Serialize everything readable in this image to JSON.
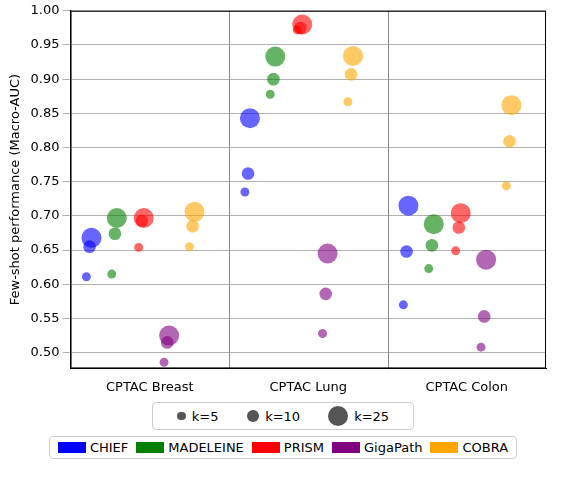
{
  "chart_data": {
    "type": "scatter",
    "y_label": "Few-shot performance (Macro-AUC)",
    "categories": [
      "CPTAC Breast",
      "CPTAC Lung",
      "CPTAC Colon"
    ],
    "k": [
      5,
      10,
      25
    ],
    "size_labels": [
      "k=5",
      "k=10",
      "k=25"
    ],
    "series": [
      {
        "name": "CHIEF",
        "color": "#0000ff",
        "values": [
          [
            0.611,
            0.655,
            0.668
          ],
          [
            0.735,
            0.762,
            0.843
          ],
          [
            0.57,
            0.648,
            0.715
          ]
        ]
      },
      {
        "name": "MADELEINE",
        "color": "#008000",
        "values": [
          [
            0.615,
            0.674,
            0.697
          ],
          [
            0.878,
            0.9,
            0.933
          ],
          [
            0.623,
            0.657,
            0.688
          ]
        ]
      },
      {
        "name": "PRISM",
        "color": "#ff0000",
        "values": [
          [
            0.654,
            0.693,
            0.697
          ],
          [
            0.972,
            0.975,
            0.98
          ],
          [
            0.649,
            0.683,
            0.704
          ]
        ]
      },
      {
        "name": "GigaPath",
        "color": "#800080",
        "values": [
          [
            0.486,
            0.515,
            0.525
          ],
          [
            0.528,
            0.586,
            0.645
          ],
          [
            0.508,
            0.553,
            0.636
          ]
        ]
      },
      {
        "name": "COBRA",
        "color": "#ffa500",
        "values": [
          [
            0.655,
            0.685,
            0.706
          ],
          [
            0.867,
            0.907,
            0.934
          ],
          [
            0.744,
            0.809,
            0.862
          ]
        ]
      }
    ],
    "ylim": [
      0.477,
      1.0
    ],
    "yticks": [
      {
        "value": 0.5,
        "label": "0.50"
      },
      {
        "value": 0.55,
        "label": "0.55"
      },
      {
        "value": 0.6,
        "label": "0.60"
      },
      {
        "value": 0.65,
        "label": "0.65"
      },
      {
        "value": 0.7,
        "label": "0.70"
      },
      {
        "value": 0.75,
        "label": "0.75"
      },
      {
        "value": 0.8,
        "label": "0.80"
      },
      {
        "value": 0.85,
        "label": "0.85"
      },
      {
        "value": 0.9,
        "label": "0.90"
      },
      {
        "value": 0.95,
        "label": "0.95"
      },
      {
        "value": 1.0,
        "label": "1.00"
      }
    ],
    "grid": true,
    "legend": "bottom"
  }
}
